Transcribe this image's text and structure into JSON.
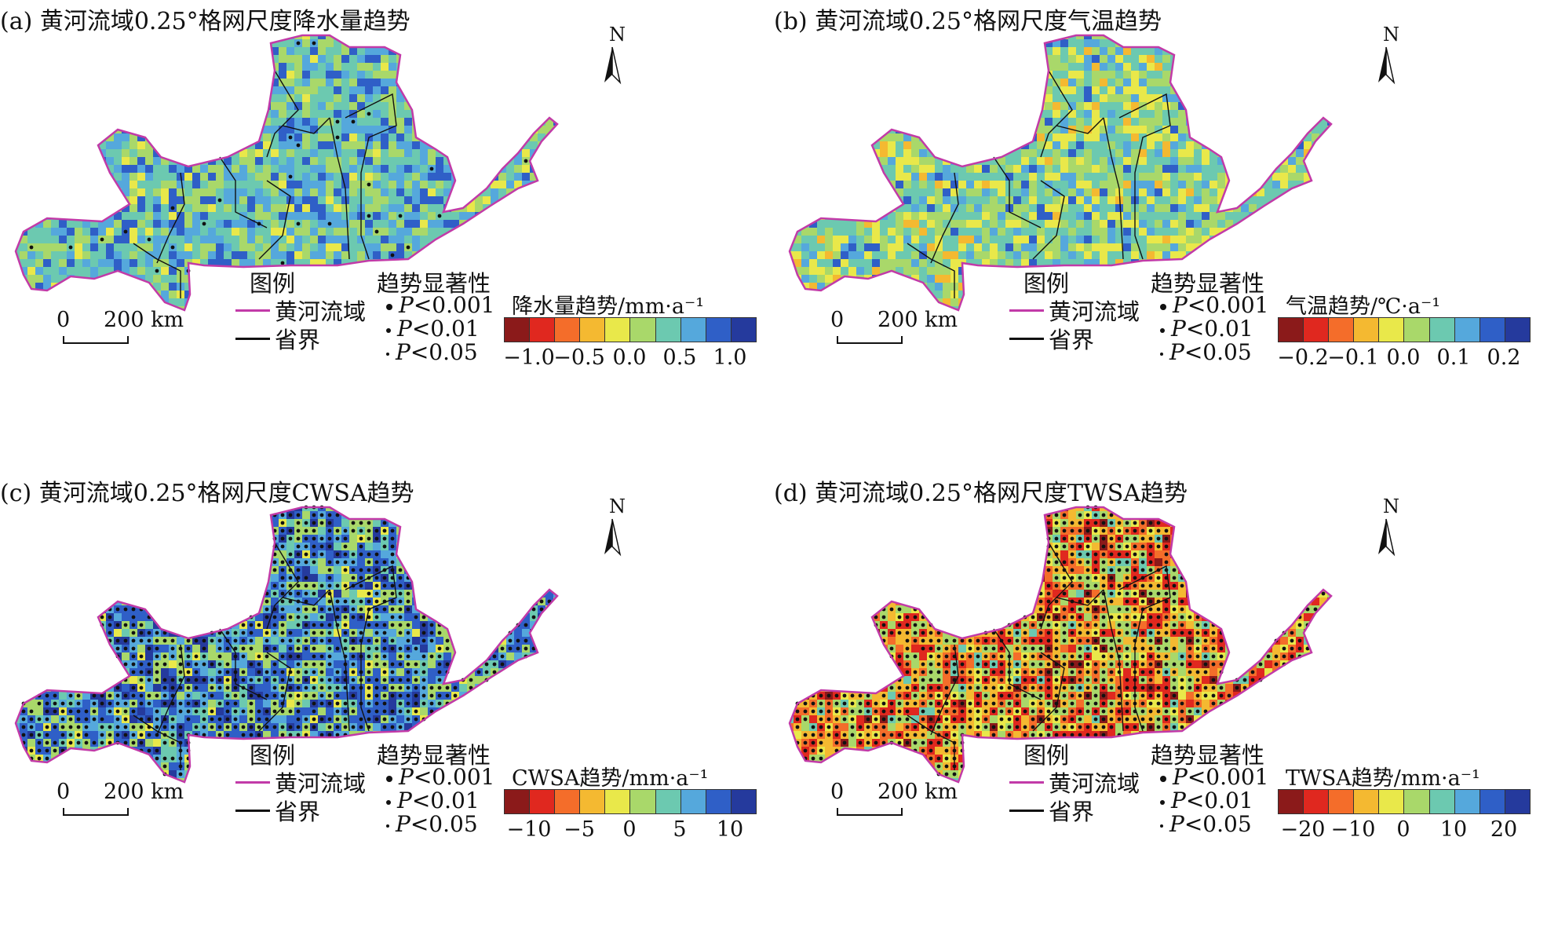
{
  "legend": {
    "title": "图例",
    "basin": "黄河流域",
    "province": "省界",
    "sig_title": "趋势显著性",
    "sig_p": "P",
    "sig_levels": [
      "<0.001",
      "<0.01",
      "<0.05"
    ],
    "north": "N",
    "scale_zero": "0",
    "scale_dist": "200 km",
    "colors": {
      "basin_line": "#c23aa8",
      "province_line": "#111111"
    }
  },
  "panels": [
    {
      "id": "a",
      "title": "(a) 黄河流域0.25°格网尺度降水量趋势",
      "cb_title": "降水量趋势/mm·a⁻¹",
      "ticks": [
        "−1.0",
        "−0.5",
        "0.0",
        "0.5",
        "1.0"
      ],
      "palette": [
        "#8b1a1a",
        "#e0281f",
        "#f46d2a",
        "#f4b931",
        "#e9e84a",
        "#a9d86a",
        "#6cc9b0",
        "#55a8dc",
        "#2f5fc7",
        "#253a9d"
      ],
      "fill_weights": [
        0,
        0,
        0,
        0,
        1,
        4,
        5,
        4,
        3,
        0
      ],
      "dot_density": 0.03
    },
    {
      "id": "b",
      "title": "(b) 黄河流域0.25°格网尺度气温趋势",
      "cb_title": "气温趋势/℃·a⁻¹",
      "ticks": [
        "−0.2",
        "−0.1",
        "0.0",
        "0.1",
        "0.2"
      ],
      "palette": [
        "#8b1a1a",
        "#e0281f",
        "#f46d2a",
        "#f4b931",
        "#e9e84a",
        "#a9d86a",
        "#6cc9b0",
        "#55a8dc",
        "#2f5fc7",
        "#253a9d"
      ],
      "fill_weights": [
        0,
        0,
        0,
        1,
        3,
        4,
        5,
        2,
        1,
        0
      ],
      "dot_density": 0.0
    },
    {
      "id": "c",
      "title": "(c) 黄河流域0.25°格网尺度CWSA趋势",
      "cb_title": "CWSA趋势/mm·a⁻¹",
      "ticks": [
        "−10",
        "−5",
        "0",
        "5",
        "10"
      ],
      "palette": [
        "#8b1a1a",
        "#e0281f",
        "#f46d2a",
        "#f4b931",
        "#e9e84a",
        "#a9d86a",
        "#6cc9b0",
        "#55a8dc",
        "#2f5fc7",
        "#253a9d"
      ],
      "fill_weights": [
        0,
        0,
        0,
        0,
        1,
        3,
        2,
        3,
        5,
        2
      ],
      "dot_density": 0.8
    },
    {
      "id": "d",
      "title": "(d) 黄河流域0.25°格网尺度TWSA趋势",
      "cb_title": "TWSA趋势/mm·a⁻¹",
      "ticks": [
        "−20",
        "−10",
        "0",
        "10",
        "20"
      ],
      "palette": [
        "#8b1a1a",
        "#e0281f",
        "#f46d2a",
        "#f4b931",
        "#e9e84a",
        "#a9d86a",
        "#6cc9b0",
        "#55a8dc",
        "#2f5fc7",
        "#253a9d"
      ],
      "fill_weights": [
        1,
        4,
        3,
        4,
        2,
        4,
        1,
        0,
        0,
        0
      ],
      "dot_density": 0.9
    }
  ]
}
